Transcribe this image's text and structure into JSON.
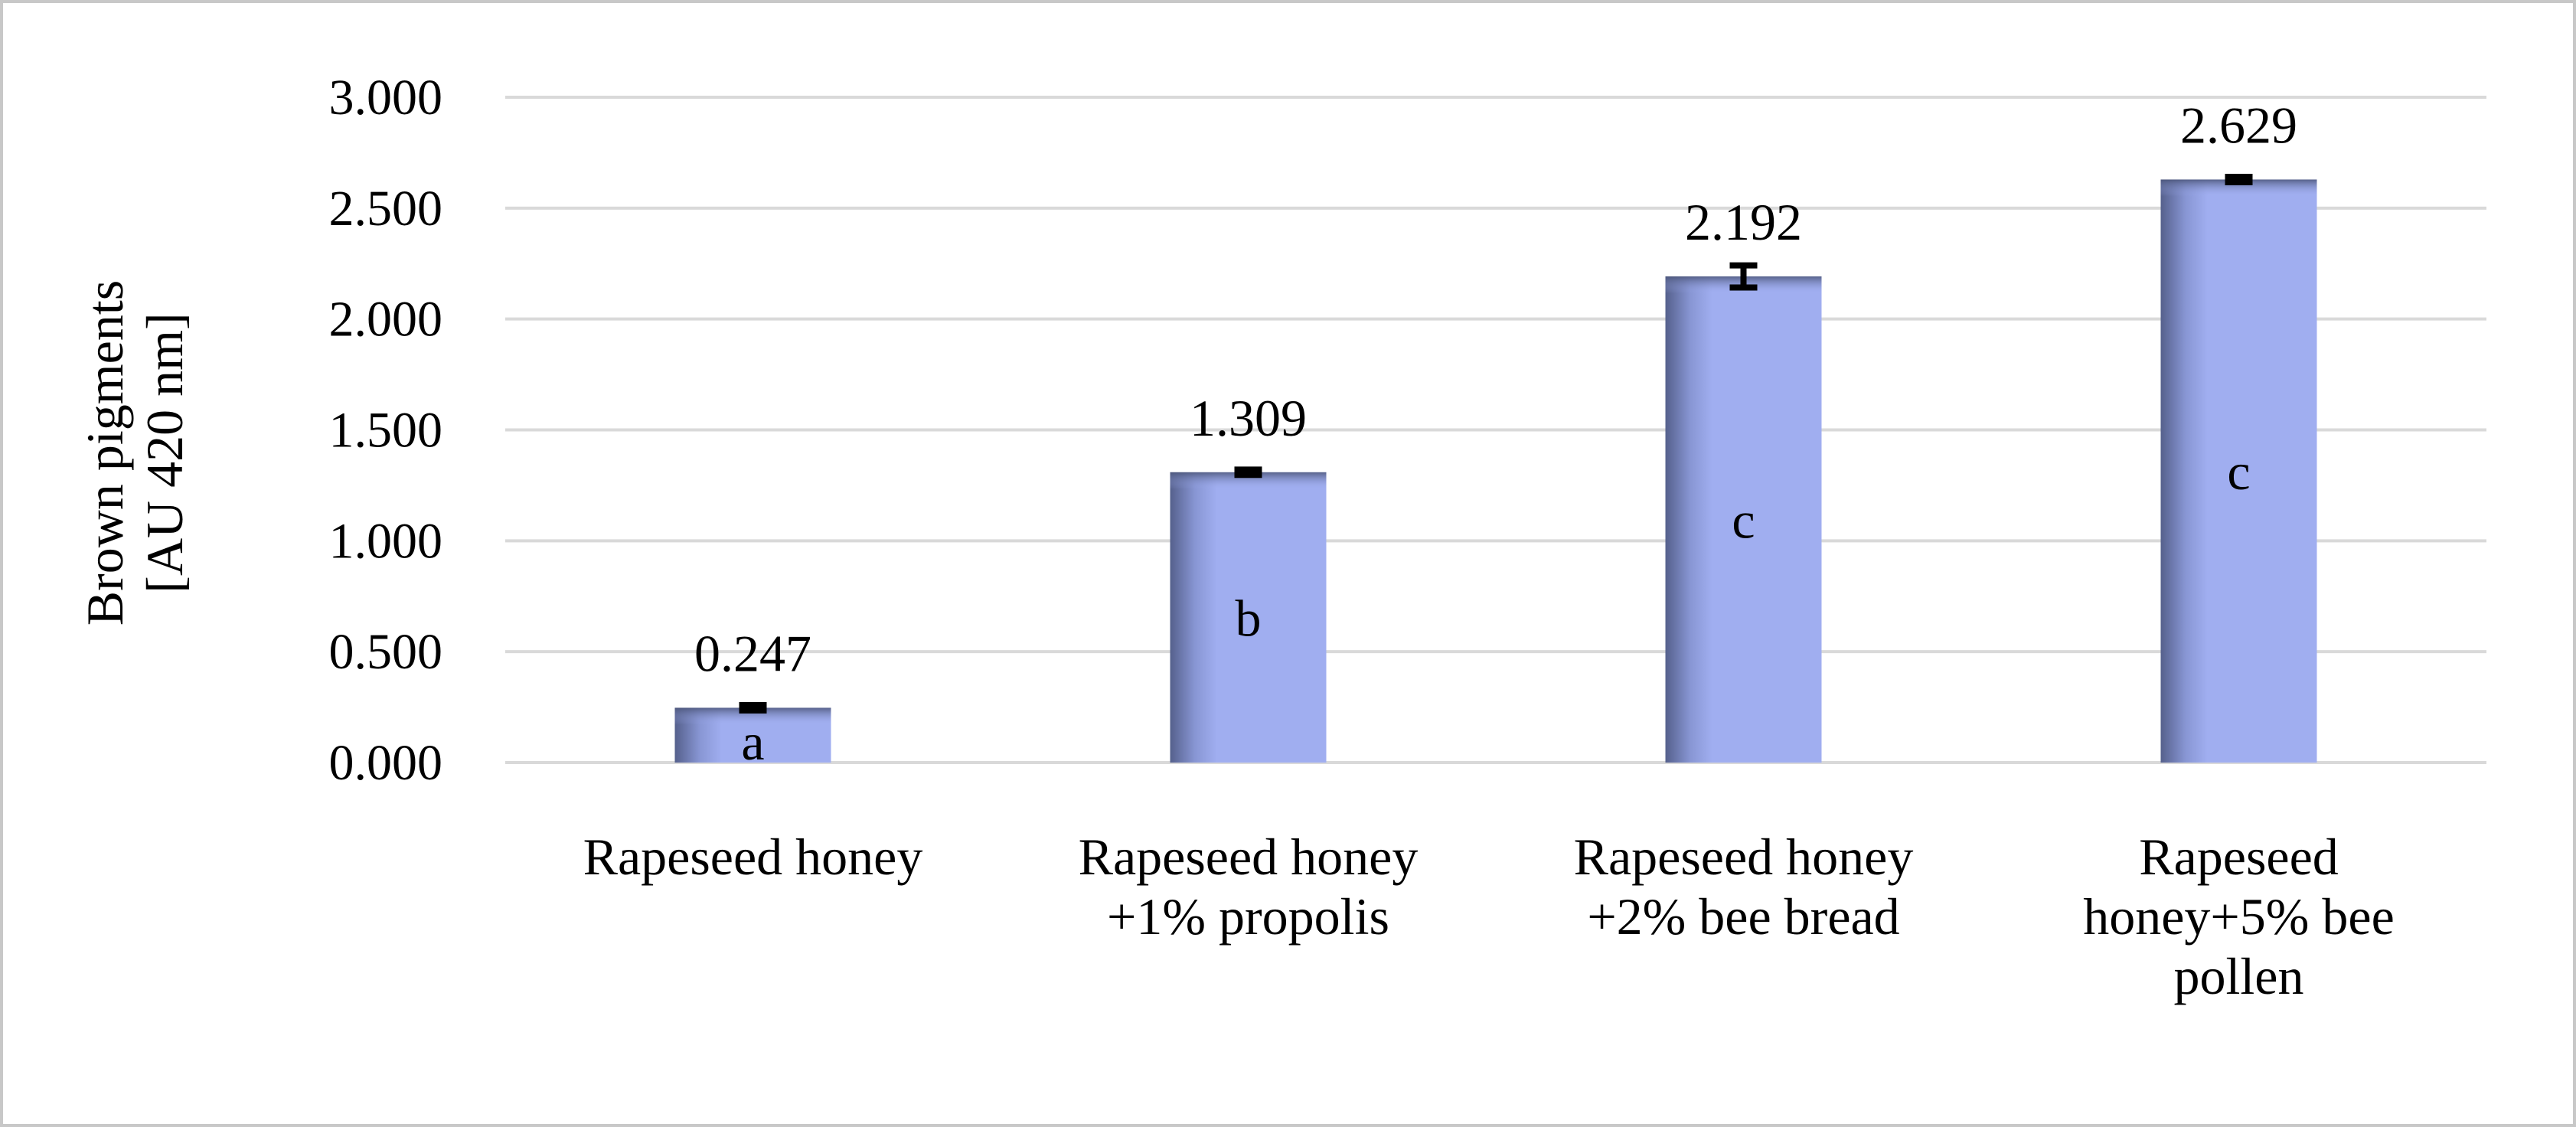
{
  "chart_data": {
    "type": "bar",
    "title": "",
    "xlabel": "",
    "ylabel": [
      "Brown pigments",
      "[AU 420 nm]"
    ],
    "ylim": [
      0,
      3.0
    ],
    "yticks": [
      0,
      0.5,
      1.0,
      1.5,
      2.0,
      2.5,
      3.0
    ],
    "ytick_labels": [
      "0.000",
      "0.500",
      "1.000",
      "1.500",
      "2.000",
      "2.500",
      "3.000"
    ],
    "grid": true,
    "legend": "none",
    "categories": [
      [
        "Rapeseed honey"
      ],
      [
        "Rapeseed honey",
        "+1% propolis"
      ],
      [
        "Rapeseed honey",
        "+2%  bee bread"
      ],
      [
        "Rapeseed",
        "honey+5% bee",
        "pollen"
      ]
    ],
    "values": [
      0.247,
      1.309,
      2.192,
      2.629
    ],
    "value_labels": [
      "0.247",
      "1.309",
      "2.192",
      "2.629"
    ],
    "errors": [
      0.012,
      0.012,
      0.05,
      0.012
    ],
    "significance": [
      "a",
      "b",
      "c",
      "c"
    ],
    "colors": {
      "bar_fill": "#a0aef0",
      "bar_edge": "#55608c",
      "grid": "#d9d9d9",
      "error_bar": "#000000",
      "frame": "#c8c8c8"
    }
  }
}
